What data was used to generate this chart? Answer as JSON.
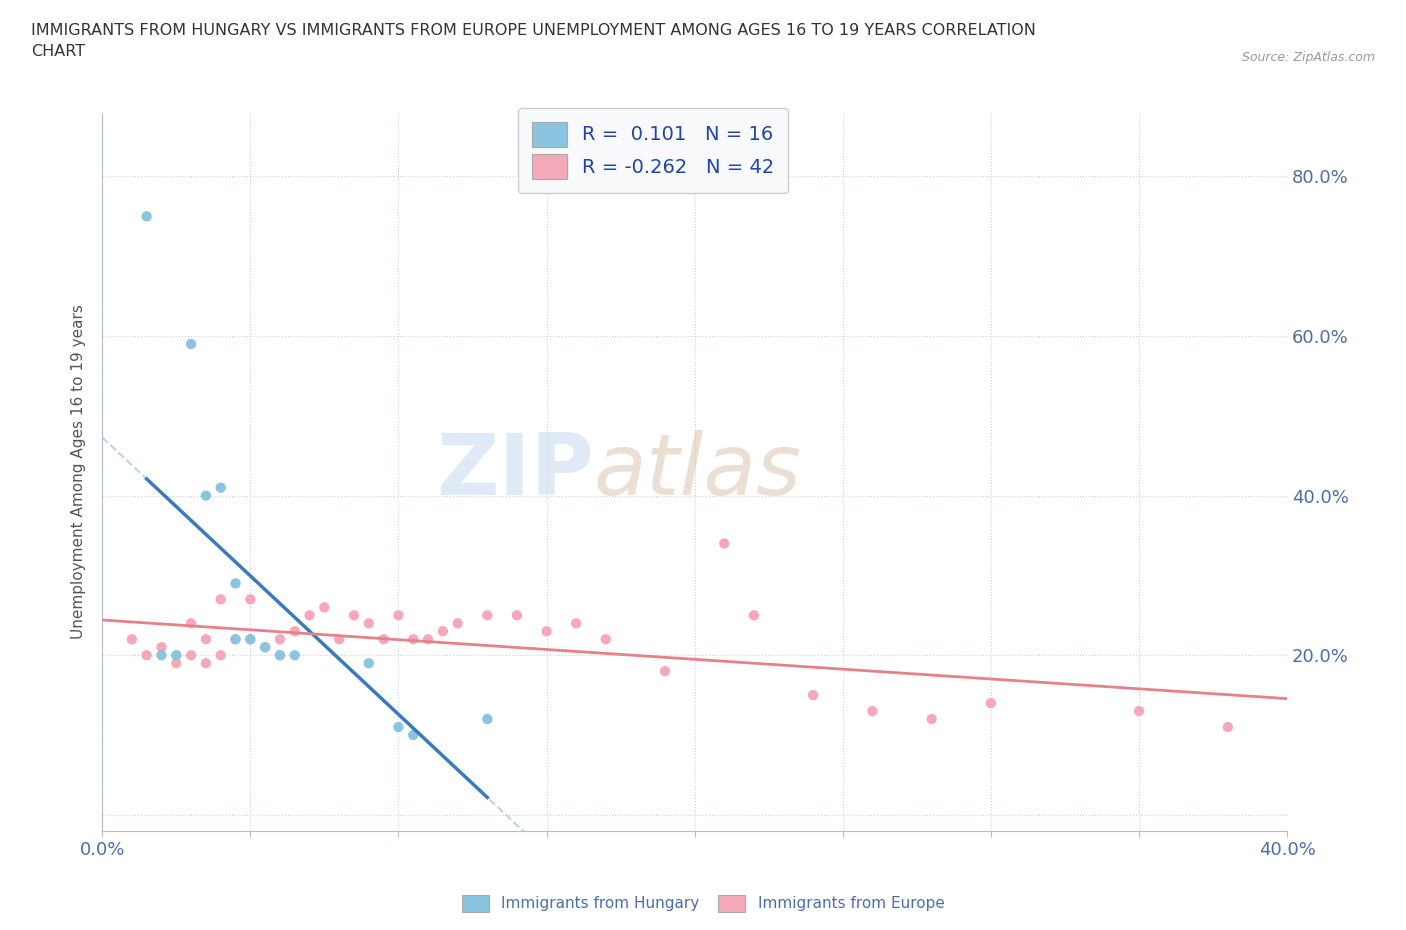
{
  "title": "IMMIGRANTS FROM HUNGARY VS IMMIGRANTS FROM EUROPE UNEMPLOYMENT AMONG AGES 16 TO 19 YEARS CORRELATION\nCHART",
  "source_text": "Source: ZipAtlas.com",
  "ylabel": "Unemployment Among Ages 16 to 19 years",
  "xlim": [
    0.0,
    0.4
  ],
  "ylim": [
    -0.02,
    0.88
  ],
  "xticks": [
    0.0,
    0.05,
    0.1,
    0.15,
    0.2,
    0.25,
    0.3,
    0.35,
    0.4
  ],
  "ytick_positions": [
    0.0,
    0.2,
    0.4,
    0.6,
    0.8
  ],
  "ytick_labels": [
    "",
    "20.0%",
    "40.0%",
    "60.0%",
    "80.0%"
  ],
  "hungary_x": [
    0.015,
    0.02,
    0.025,
    0.03,
    0.035,
    0.04,
    0.045,
    0.045,
    0.05,
    0.055,
    0.06,
    0.065,
    0.09,
    0.1,
    0.105,
    0.13
  ],
  "hungary_y": [
    0.75,
    0.2,
    0.2,
    0.59,
    0.4,
    0.41,
    0.29,
    0.22,
    0.22,
    0.21,
    0.2,
    0.2,
    0.19,
    0.11,
    0.1,
    0.12
  ],
  "europe_x": [
    0.01,
    0.015,
    0.02,
    0.025,
    0.03,
    0.03,
    0.035,
    0.035,
    0.04,
    0.04,
    0.045,
    0.05,
    0.05,
    0.055,
    0.06,
    0.06,
    0.065,
    0.07,
    0.075,
    0.08,
    0.085,
    0.09,
    0.095,
    0.1,
    0.105,
    0.11,
    0.115,
    0.12,
    0.13,
    0.14,
    0.15,
    0.16,
    0.17,
    0.19,
    0.21,
    0.22,
    0.24,
    0.26,
    0.28,
    0.3,
    0.35,
    0.38
  ],
  "europe_y": [
    0.22,
    0.2,
    0.21,
    0.19,
    0.2,
    0.24,
    0.19,
    0.22,
    0.2,
    0.27,
    0.22,
    0.22,
    0.27,
    0.21,
    0.2,
    0.22,
    0.23,
    0.25,
    0.26,
    0.22,
    0.25,
    0.24,
    0.22,
    0.25,
    0.22,
    0.22,
    0.23,
    0.24,
    0.25,
    0.25,
    0.23,
    0.24,
    0.22,
    0.18,
    0.34,
    0.25,
    0.15,
    0.13,
    0.12,
    0.14,
    0.13,
    0.11
  ],
  "hungary_color": "#89c4e1",
  "europe_color": "#f4a8b8",
  "hungary_line_solid_color": "#3a7abf",
  "hungary_line_dash_color": "#a8c8e8",
  "europe_line_color": "#e8808a",
  "R_hungary": 0.101,
  "N_hungary": 16,
  "R_europe": -0.262,
  "N_europe": 42,
  "watermark_zip": "ZIP",
  "watermark_atlas": "atlas",
  "background_color": "#ffffff"
}
